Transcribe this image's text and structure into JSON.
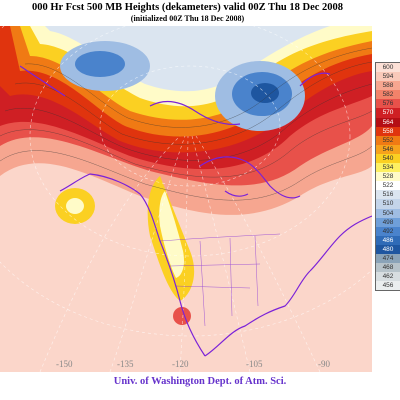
{
  "header": {
    "title": "000 Hr Fcst 500 MB Heights (dekameters) valid 00Z Thu 18 Dec 2008",
    "subtitle": "(initialized 00Z Thu 18 Dec 2008)"
  },
  "legend": {
    "items": [
      {
        "label": "600",
        "color": "#fce0d6"
      },
      {
        "label": "594",
        "color": "#f9c9b9"
      },
      {
        "label": "588",
        "color": "#f6a690"
      },
      {
        "label": "582",
        "color": "#f2826a"
      },
      {
        "label": "576",
        "color": "#e8514a"
      },
      {
        "label": "570",
        "color": "#cf1f24"
      },
      {
        "label": "564",
        "color": "#b40e15"
      },
      {
        "label": "558",
        "color": "#e0340e"
      },
      {
        "label": "552",
        "color": "#f07a14"
      },
      {
        "label": "546",
        "color": "#f7a21c"
      },
      {
        "label": "540",
        "color": "#fbd022"
      },
      {
        "label": "534",
        "color": "#fdf062"
      },
      {
        "label": "528",
        "color": "#fffbc8"
      },
      {
        "label": "522",
        "color": "#ffffff"
      },
      {
        "label": "516",
        "color": "#dbe5f0"
      },
      {
        "label": "510",
        "color": "#c4d5ea"
      },
      {
        "label": "504",
        "color": "#9fbde3"
      },
      {
        "label": "498",
        "color": "#6f9fd9"
      },
      {
        "label": "492",
        "color": "#4a83cc"
      },
      {
        "label": "486",
        "color": "#2f6bb7"
      },
      {
        "label": "480",
        "color": "#1e56a0"
      },
      {
        "label": "474",
        "color": "#8aa3b8"
      },
      {
        "label": "468",
        "color": "#b7c3ca"
      },
      {
        "label": "462",
        "color": "#d7dde0"
      },
      {
        "label": "456",
        "color": "#ebeeef"
      }
    ]
  },
  "map": {
    "longitude_labels": [
      "-150",
      "-135",
      "-120",
      "-105",
      "-90"
    ],
    "line_color": "#7b22d8"
  },
  "footer": {
    "credit": "Univ. of Washington Dept. of Atm. Sci."
  }
}
